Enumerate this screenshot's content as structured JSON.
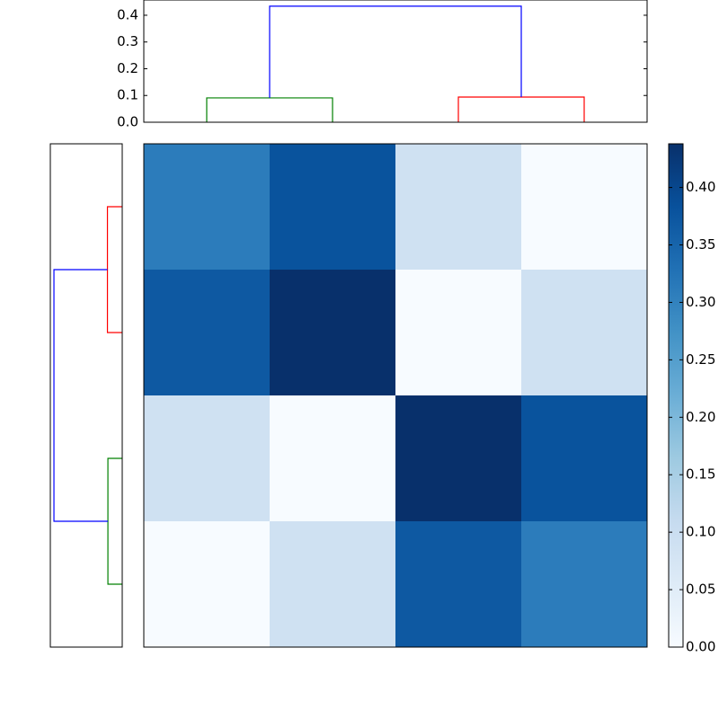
{
  "chart_data": {
    "type": "clustermap",
    "matrix": [
      [
        0.31,
        0.38,
        0.09,
        0.0
      ],
      [
        0.37,
        0.438,
        0.0,
        0.09
      ],
      [
        0.09,
        0.0,
        0.438,
        0.38
      ],
      [
        0.0,
        0.09,
        0.37,
        0.31
      ]
    ],
    "vlim": [
      0,
      0.438
    ],
    "colormap": "Blues",
    "colorbar_ticks": [
      {
        "value": 0,
        "label": "0.00"
      },
      {
        "value": 0.05,
        "label": "0.05"
      },
      {
        "value": 0.1,
        "label": "0.10"
      },
      {
        "value": 0.15,
        "label": "0.15"
      },
      {
        "value": 0.2,
        "label": "0.20"
      },
      {
        "value": 0.25,
        "label": "0.25"
      },
      {
        "value": 0.3,
        "label": "0.30"
      },
      {
        "value": 0.35,
        "label": "0.35"
      },
      {
        "value": 0.4,
        "label": "0.40"
      }
    ],
    "top_dendrogram": {
      "ylim": [
        0,
        0.457
      ],
      "yticks": [
        {
          "value": 0,
          "label": "0.0"
        },
        0.1,
        0.2,
        0.3,
        0.4
      ],
      "links": [
        {
          "children": [
            0,
            1
          ],
          "height": 0.091,
          "color": "#008000"
        },
        {
          "children": [
            2,
            3
          ],
          "height": 0.094,
          "color": "#ff0000"
        },
        {
          "children": [
            4,
            5
          ],
          "height": 0.434,
          "color": "#0000ff"
        }
      ]
    },
    "left_dendrogram": {
      "xlim": [
        0,
        0.457
      ],
      "links": [
        {
          "children": [
            0,
            1
          ],
          "height": 0.094,
          "color": "#ff0000"
        },
        {
          "children": [
            2,
            3
          ],
          "height": 0.091,
          "color": "#008000"
        },
        {
          "children": [
            4,
            5
          ],
          "height": 0.434,
          "color": "#0000ff"
        }
      ]
    }
  }
}
